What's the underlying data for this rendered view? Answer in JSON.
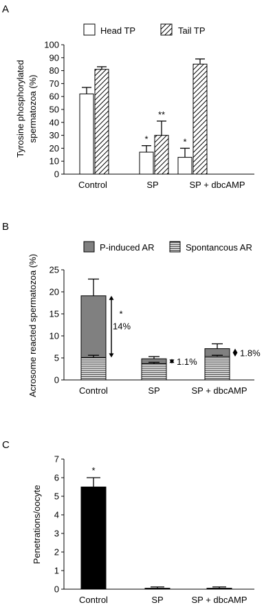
{
  "chart_data": [
    {
      "panel_label": "A",
      "type": "bar",
      "categories": [
        "Control",
        "SP",
        "SP + dbcAMP"
      ],
      "ylabel_lines": [
        "Tyrosine phosphorylated",
        "spermatozoa (%)"
      ],
      "ylim": [
        0,
        100
      ],
      "yticks": [
        0,
        10,
        20,
        30,
        40,
        50,
        60,
        70,
        80,
        90,
        100
      ],
      "legend_position": "top",
      "series": [
        {
          "name": "Head TP",
          "fill": "white",
          "values": [
            62,
            17,
            13
          ],
          "errors": [
            5,
            5,
            7
          ],
          "annotations": [
            "",
            "*",
            "*"
          ]
        },
        {
          "name": "Tail TP",
          "fill": "hatched",
          "values": [
            81,
            30,
            85
          ],
          "errors": [
            2,
            11,
            4
          ],
          "annotations": [
            "",
            "**",
            ""
          ]
        }
      ]
    },
    {
      "panel_label": "B",
      "type": "bar",
      "stacked": true,
      "categories": [
        "Control",
        "SP",
        "SP + dbcAMP"
      ],
      "ylabel": "Acrosome reacted spermatozoa (%)",
      "ylim": [
        0,
        25
      ],
      "yticks": [
        0,
        5,
        10,
        15,
        20,
        25
      ],
      "legend_position": "top",
      "series": [
        {
          "name": "Spontancous AR",
          "fill": "horizontal-lines",
          "values": [
            5.1,
            3.7,
            5.3
          ],
          "errors": [
            0.5,
            0.3,
            0.3
          ]
        },
        {
          "name": "P-induced AR",
          "fill": "grey",
          "values": [
            14.0,
            1.1,
            1.8
          ],
          "errors": [
            3.8,
            0.5,
            1.1
          ]
        }
      ],
      "annotations": [
        {
          "category": "Control",
          "marker": "*",
          "text": "14%"
        },
        {
          "category": "SP",
          "text": "1.1%"
        },
        {
          "category": "SP + dbcAMP",
          "text": "1.8%"
        }
      ]
    },
    {
      "panel_label": "C",
      "type": "bar",
      "categories": [
        "Control",
        "SP",
        "SP + dbcAMP"
      ],
      "ylabel": "Penetrations/oocyte",
      "ylim": [
        0,
        7
      ],
      "yticks": [
        0,
        1,
        2,
        3,
        4,
        5,
        6,
        7
      ],
      "series": [
        {
          "fill": "black",
          "values": [
            5.5,
            0.05,
            0.05
          ],
          "errors": [
            0.5,
            0.07,
            0.07
          ],
          "annotations": [
            "*",
            "",
            ""
          ]
        }
      ]
    }
  ]
}
